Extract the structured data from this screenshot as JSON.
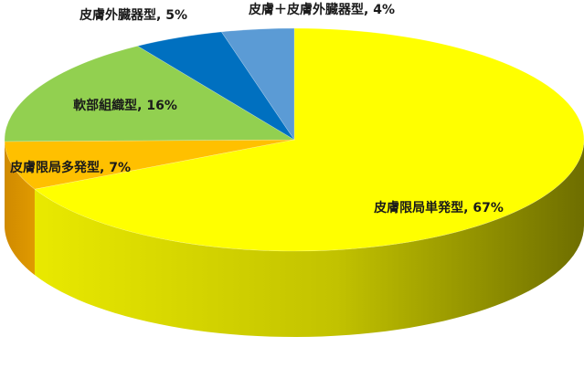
{
  "chart_data": {
    "type": "pie",
    "style": "3d",
    "start": "12 o'clock, clockwise",
    "slices": [
      {
        "label": "皮膚限局単発型",
        "value": 67,
        "display": "皮膚限局単発型, 67%",
        "color": "#FFFF00",
        "side_color": "#9E9E00"
      },
      {
        "label": "皮膚限局多発型",
        "value": 7,
        "display": "皮膚限局多発型, 7%",
        "color": "#FFC000",
        "side_color": "#B57F00"
      },
      {
        "label": "軟部組織型",
        "value": 16,
        "display": "軟部組織型, 16%",
        "color": "#92D050",
        "side_color": "#5E8F2C"
      },
      {
        "label": "皮膚外臓器型",
        "value": 5,
        "display": "皮膚外臓器型, 5%",
        "color": "#0070C0",
        "side_color": "#004A80"
      },
      {
        "label": "皮膚＋皮膚外臓器型",
        "value": 4,
        "display": "皮膚＋皮膚外臓器型, 4%",
        "color": "#5B9BD5",
        "side_color": "#3A6A98"
      }
    ]
  }
}
